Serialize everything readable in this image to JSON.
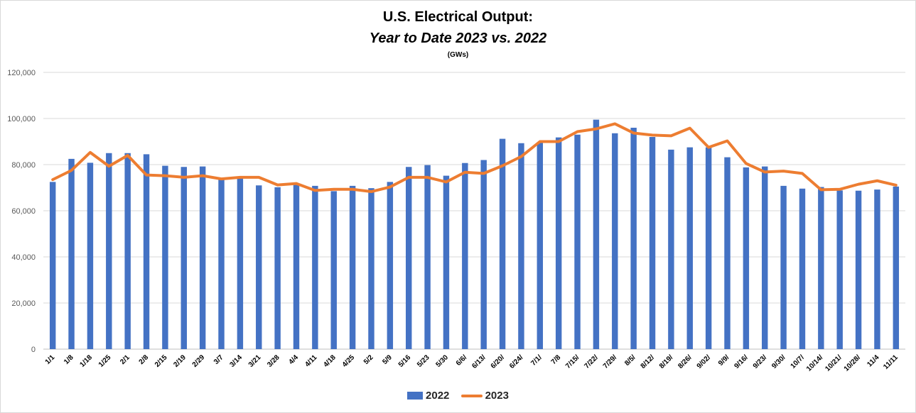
{
  "chart_data": {
    "type": "bar+line",
    "title": "U.S. Electrical Output:",
    "subtitle": "Year to Date 2023 vs. 2022",
    "unit": "(GWs)",
    "ylim": [
      0,
      120000
    ],
    "yticks": [
      "0",
      "20,000",
      "40,000",
      "60,000",
      "80,000",
      "100,000",
      "120,000"
    ],
    "grid": true,
    "legend_position": "bottom",
    "categories": [
      "1/1",
      "1/8",
      "1/18",
      "1/25",
      "2/1",
      "2/8",
      "2/15",
      "2/19",
      "2/29",
      "3/7",
      "3/14",
      "3/21",
      "3/28",
      "4/4",
      "4/11",
      "4/18",
      "4/25",
      "5/2",
      "5/9",
      "5/16",
      "5/23",
      "5/30",
      "6/6/",
      "6/13/",
      "6/20/",
      "6/24/",
      "7/1/",
      "7/8",
      "7/15/",
      "7/22/",
      "7/29/",
      "8/5/",
      "8/12/",
      "8/19/",
      "8/26/",
      "9/02/",
      "9/9/",
      "9/16/",
      "9/23/",
      "9/30/",
      "10/7/",
      "10/14/",
      "10/21/",
      "10/28/",
      "11/4",
      "11/11"
    ],
    "series": [
      {
        "name": "2022",
        "type": "bar",
        "color": "#4472c4",
        "values": [
          72500,
          82500,
          80800,
          85000,
          85000,
          84500,
          79500,
          79000,
          79200,
          73500,
          74800,
          71000,
          70200,
          71800,
          70800,
          68500,
          70800,
          69800,
          72500,
          79000,
          79800,
          75200,
          80700,
          82000,
          91200,
          89300,
          89500,
          91800,
          93000,
          99500,
          93600,
          96000,
          92000,
          86500,
          87500,
          87500,
          83200,
          78800,
          79200,
          70800,
          69600,
          70300,
          68800,
          68700,
          69200,
          70500
        ]
      },
      {
        "name": "2023",
        "type": "line",
        "color": "#ed7d31",
        "values": [
          73500,
          77500,
          85300,
          79300,
          84000,
          75500,
          75200,
          74500,
          75200,
          73800,
          74500,
          74500,
          71200,
          71800,
          68800,
          69300,
          69300,
          68300,
          70300,
          74500,
          74500,
          72500,
          76700,
          76200,
          79500,
          83500,
          90000,
          90000,
          94300,
          95500,
          97700,
          93700,
          92800,
          92500,
          95800,
          87500,
          90300,
          80500,
          76800,
          77200,
          76200,
          69100,
          69300,
          71500,
          73000,
          71100
        ]
      }
    ]
  }
}
